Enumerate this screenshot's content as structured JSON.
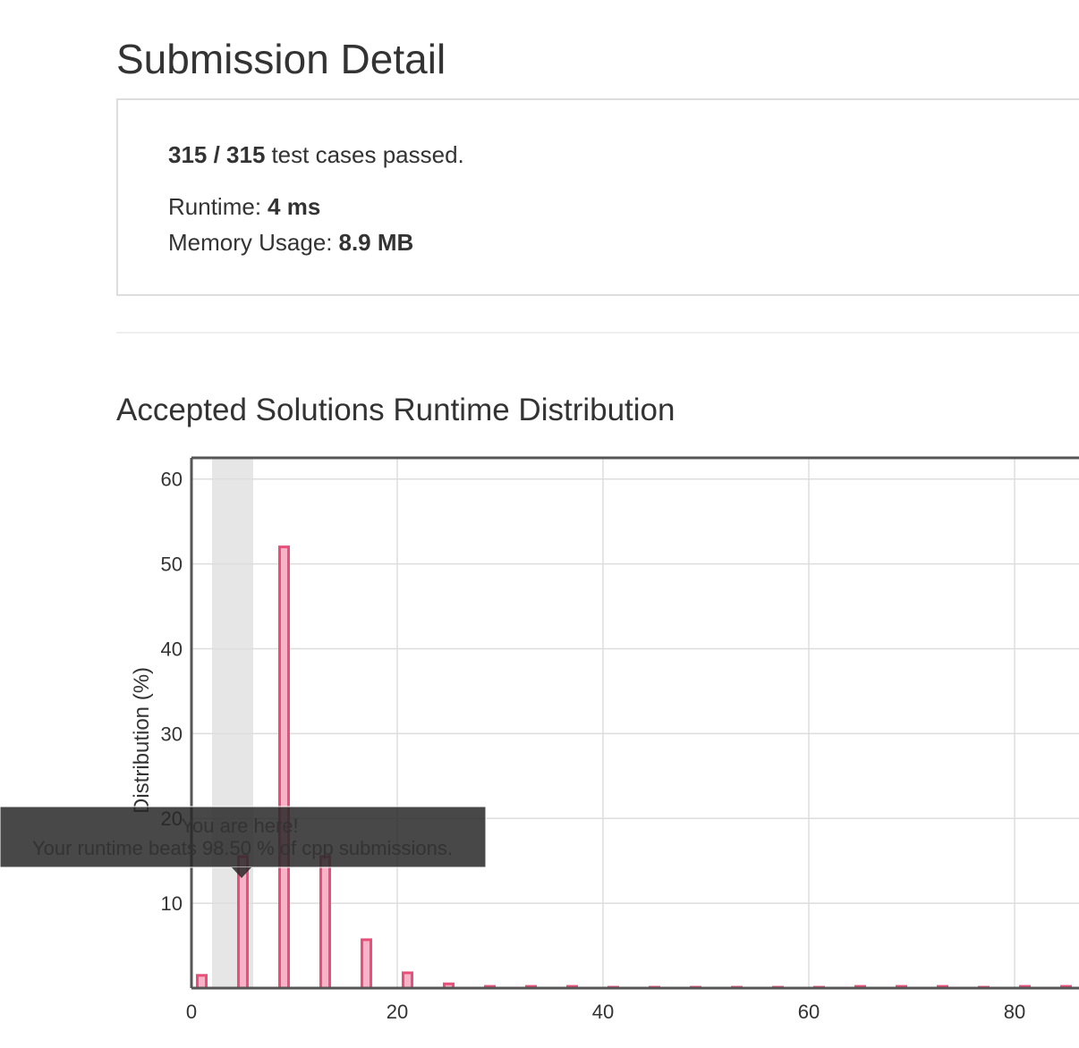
{
  "header": {
    "title": "Submission Detail"
  },
  "summary": {
    "passed": "315 / 315",
    "passed_text": "test cases passed.",
    "runtime_label": "Runtime:",
    "runtime": "4 ms",
    "memory_label": "Memory Usage:",
    "memory": "8.9 MB"
  },
  "section_title": "Accepted Solutions Runtime Distribution",
  "chart_data": {
    "type": "bar",
    "y_label": "Distribution (%)",
    "x": [
      1,
      5,
      9,
      13,
      17,
      21,
      25,
      29,
      33,
      37,
      41,
      45,
      49,
      53,
      57,
      61,
      65,
      69,
      73,
      77,
      81,
      85
    ],
    "values": [
      1.5,
      15.5,
      52,
      15.5,
      5.7,
      1.8,
      0.5,
      0.2,
      0.2,
      0.2,
      0.1,
      0.1,
      0.1,
      0.1,
      0.1,
      0.1,
      0.2,
      0.2,
      0.2,
      0.1,
      0.2,
      0.2
    ],
    "color": "#e8507a",
    "fill": "#f9b3c8",
    "xlim": [
      0,
      86
    ],
    "ylim": [
      0,
      62.5
    ],
    "xticks": [
      0,
      20,
      40,
      60,
      80
    ],
    "yticks": [
      10,
      20,
      30,
      40,
      50,
      60
    ],
    "grid": true,
    "highlight": [
      2,
      6
    ],
    "tooltip": {
      "title": "You are here!",
      "text": "Your runtime beats 98.50 % of cpp submissions."
    }
  }
}
